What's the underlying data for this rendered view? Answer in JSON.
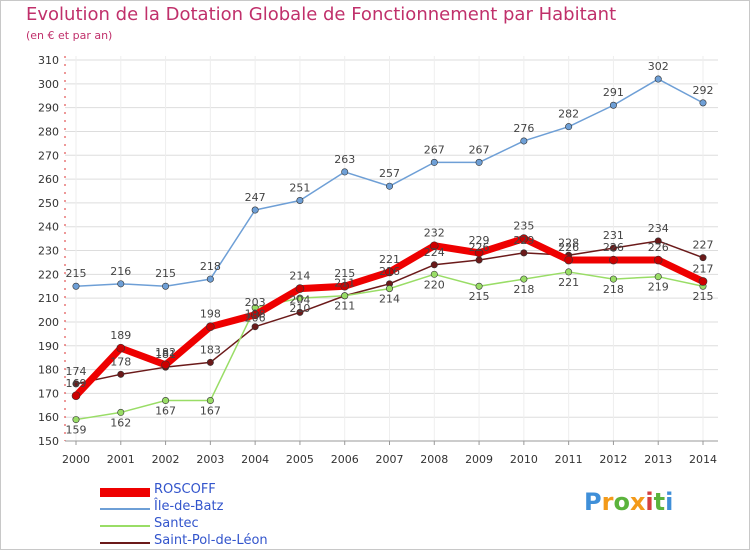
{
  "title": "Evolution de la Dotation Globale de Fonctionnement par Habitant",
  "subtitle": "(en € et par an)",
  "chart_data": {
    "type": "line",
    "categories": [
      "2000",
      "2001",
      "2002",
      "2003",
      "2004",
      "2005",
      "2006",
      "2007",
      "2008",
      "2009",
      "2010",
      "2011",
      "2012",
      "2013",
      "2014"
    ],
    "ylim": [
      150,
      310
    ],
    "yticks": [
      150,
      160,
      170,
      180,
      190,
      200,
      210,
      220,
      230,
      240,
      250,
      260,
      270,
      280,
      290,
      300,
      310
    ],
    "grid": true,
    "legend_position": "bottom-left",
    "series": [
      {
        "name": "ROSCOFF",
        "color": "#ee0000",
        "line_width": 7,
        "values": [
          169,
          189,
          182,
          198,
          203,
          214,
          215,
          221,
          232,
          229,
          235,
          226,
          226,
          226,
          217
        ]
      },
      {
        "name": "Île-de-Batz",
        "color": "#6e9fd6",
        "line_width": 1.5,
        "values": [
          215,
          216,
          215,
          218,
          247,
          251,
          263,
          257,
          267,
          267,
          276,
          282,
          291,
          302,
          292
        ]
      },
      {
        "name": "Santec",
        "color": "#99dd66",
        "line_width": 1.5,
        "values": [
          159,
          162,
          167,
          167,
          206,
          210,
          211,
          214,
          220,
          215,
          218,
          221,
          218,
          219,
          215
        ]
      },
      {
        "name": "Saint-Pol-de-Léon",
        "color": "#6b1a1a",
        "line_width": 1.5,
        "values": [
          174,
          178,
          181,
          183,
          198,
          204,
          211,
          216,
          224,
          226,
          229,
          228,
          231,
          234,
          227
        ]
      }
    ]
  },
  "logo": {
    "letters": [
      "P",
      "r",
      "o",
      "x",
      "i",
      "t",
      "i"
    ],
    "colors": [
      "#3f8fd8",
      "#f39a1a",
      "#5bb33c",
      "#f39a1a",
      "#d43f3f",
      "#5bb33c",
      "#3f8fd8"
    ]
  }
}
